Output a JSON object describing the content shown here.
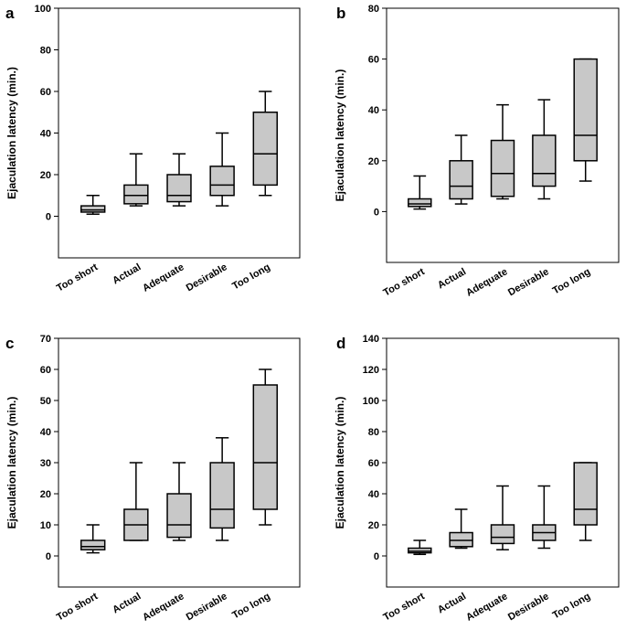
{
  "chart_data": [
    {
      "panel": "a",
      "type": "box",
      "ylabel": "Ejaculation latency (min.)",
      "ylim": [
        -20,
        100
      ],
      "yticks": [
        0,
        20,
        40,
        60,
        80,
        100
      ],
      "categories": [
        "Too short",
        "Actual",
        "Adequate",
        "Desirable",
        "Too long"
      ],
      "boxes": [
        {
          "min": 1,
          "q1": 2,
          "median": 3,
          "q3": 5,
          "max": 10
        },
        {
          "min": 5,
          "q1": 6,
          "median": 10,
          "q3": 15,
          "max": 30
        },
        {
          "min": 5,
          "q1": 7,
          "median": 10,
          "q3": 20,
          "max": 30
        },
        {
          "min": 5,
          "q1": 10,
          "median": 15,
          "q3": 24,
          "max": 40
        },
        {
          "min": 10,
          "q1": 15,
          "median": 30,
          "q3": 50,
          "max": 60
        }
      ]
    },
    {
      "panel": "b",
      "type": "box",
      "ylabel": "Ejaculation latency (min.)",
      "ylim": [
        -20,
        80
      ],
      "yticks": [
        0,
        20,
        40,
        60,
        80
      ],
      "categories": [
        "Too short",
        "Actual",
        "Adequate",
        "Desirable",
        "Too long"
      ],
      "boxes": [
        {
          "min": 1,
          "q1": 2,
          "median": 3,
          "q3": 5,
          "max": 14
        },
        {
          "min": 3,
          "q1": 5,
          "median": 10,
          "q3": 20,
          "max": 30
        },
        {
          "min": 5,
          "q1": 6,
          "median": 15,
          "q3": 28,
          "max": 42
        },
        {
          "min": 5,
          "q1": 10,
          "median": 15,
          "q3": 30,
          "max": 44
        },
        {
          "min": 12,
          "q1": 20,
          "median": 30,
          "q3": 60,
          "max": 60
        }
      ]
    },
    {
      "panel": "c",
      "type": "box",
      "ylabel": "Ejaculation latency (min.)",
      "ylim": [
        -10,
        70
      ],
      "yticks": [
        0,
        10,
        20,
        30,
        40,
        50,
        60,
        70
      ],
      "categories": [
        "Too short",
        "Actual",
        "Adequate",
        "Desirable",
        "Too long"
      ],
      "boxes": [
        {
          "min": 1,
          "q1": 2,
          "median": 3,
          "q3": 5,
          "max": 10
        },
        {
          "min": 5,
          "q1": 5,
          "median": 10,
          "q3": 15,
          "max": 30
        },
        {
          "min": 5,
          "q1": 6,
          "median": 10,
          "q3": 20,
          "max": 30
        },
        {
          "min": 5,
          "q1": 9,
          "median": 15,
          "q3": 30,
          "max": 38
        },
        {
          "min": 10,
          "q1": 15,
          "median": 30,
          "q3": 55,
          "max": 60
        }
      ]
    },
    {
      "panel": "d",
      "type": "box",
      "ylabel": "Ejaculation latency (min.)",
      "ylim": [
        -20,
        140
      ],
      "yticks": [
        0,
        20,
        40,
        60,
        80,
        100,
        120,
        140
      ],
      "categories": [
        "Too short",
        "Actual",
        "Adequate",
        "Desirable",
        "Too long"
      ],
      "boxes": [
        {
          "min": 1,
          "q1": 2,
          "median": 3,
          "q3": 5,
          "max": 10
        },
        {
          "min": 5,
          "q1": 6,
          "median": 10,
          "q3": 15,
          "max": 30
        },
        {
          "min": 4,
          "q1": 8,
          "median": 12,
          "q3": 20,
          "max": 45
        },
        {
          "min": 5,
          "q1": 10,
          "median": 15,
          "q3": 20,
          "max": 45
        },
        {
          "min": 10,
          "q1": 20,
          "median": 30,
          "q3": 60,
          "max": 60
        }
      ]
    }
  ],
  "colors": {
    "box_fill": "#c8c8c8",
    "stroke": "#000000",
    "background": "#ffffff"
  }
}
